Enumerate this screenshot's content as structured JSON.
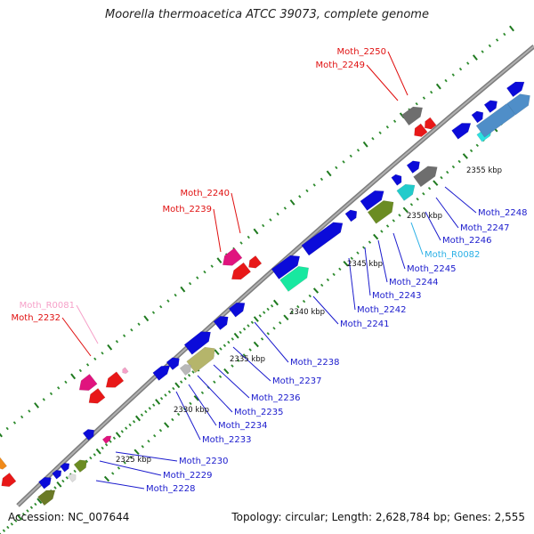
{
  "title": "Moorella thermoacetica ATCC 39073, complete genome",
  "footer": {
    "accession": "Accession: NC_007644",
    "stats": "Topology: circular; Length: 2,628,784 bp; Genes: 2,555"
  },
  "scale_labels": [
    "2325 kbp",
    "2330 kbp",
    "2335 kbp",
    "2340 kbp",
    "2345 kbp",
    "2350 kbp",
    "2355 kbp"
  ],
  "gene_labels": [
    {
      "text": "Moth_2250",
      "color": "#e01010"
    },
    {
      "text": "Moth_2249",
      "color": "#e01010"
    },
    {
      "text": "Moth_2240",
      "color": "#e01010"
    },
    {
      "text": "Moth_2239",
      "color": "#e01010"
    },
    {
      "text": "Moth_R0081",
      "color": "#f6a0c8"
    },
    {
      "text": "Moth_2232",
      "color": "#e01010"
    },
    {
      "text": "Moth_2248",
      "color": "#1a1acd"
    },
    {
      "text": "Moth_2247",
      "color": "#1a1acd"
    },
    {
      "text": "Moth_2246",
      "color": "#1a1acd"
    },
    {
      "text": "Moth_R0082",
      "color": "#2ab0e6"
    },
    {
      "text": "Moth_2245",
      "color": "#1a1acd"
    },
    {
      "text": "Moth_2244",
      "color": "#1a1acd"
    },
    {
      "text": "Moth_2243",
      "color": "#1a1acd"
    },
    {
      "text": "Moth_2242",
      "color": "#1a1acd"
    },
    {
      "text": "Moth_2241",
      "color": "#1a1acd"
    },
    {
      "text": "Moth_2238",
      "color": "#1a1acd"
    },
    {
      "text": "Moth_2237",
      "color": "#1a1acd"
    },
    {
      "text": "Moth_2236",
      "color": "#1a1acd"
    },
    {
      "text": "Moth_2235",
      "color": "#1a1acd"
    },
    {
      "text": "Moth_2234",
      "color": "#1a1acd"
    },
    {
      "text": "Moth_2233",
      "color": "#1a1acd"
    },
    {
      "text": "Moth_2230",
      "color": "#1a1acd"
    },
    {
      "text": "Moth_2229",
      "color": "#1a1acd"
    },
    {
      "text": "Moth_2228",
      "color": "#1a1acd"
    }
  ],
  "colors": {
    "backbone": "#8a8a8a",
    "forward_gene": "#0b0bd9",
    "reverse_gene": "#e81818",
    "tick_major": "#1f7a1f",
    "tick_minor": "#2e8b2e",
    "scale_text": "#111111"
  }
}
